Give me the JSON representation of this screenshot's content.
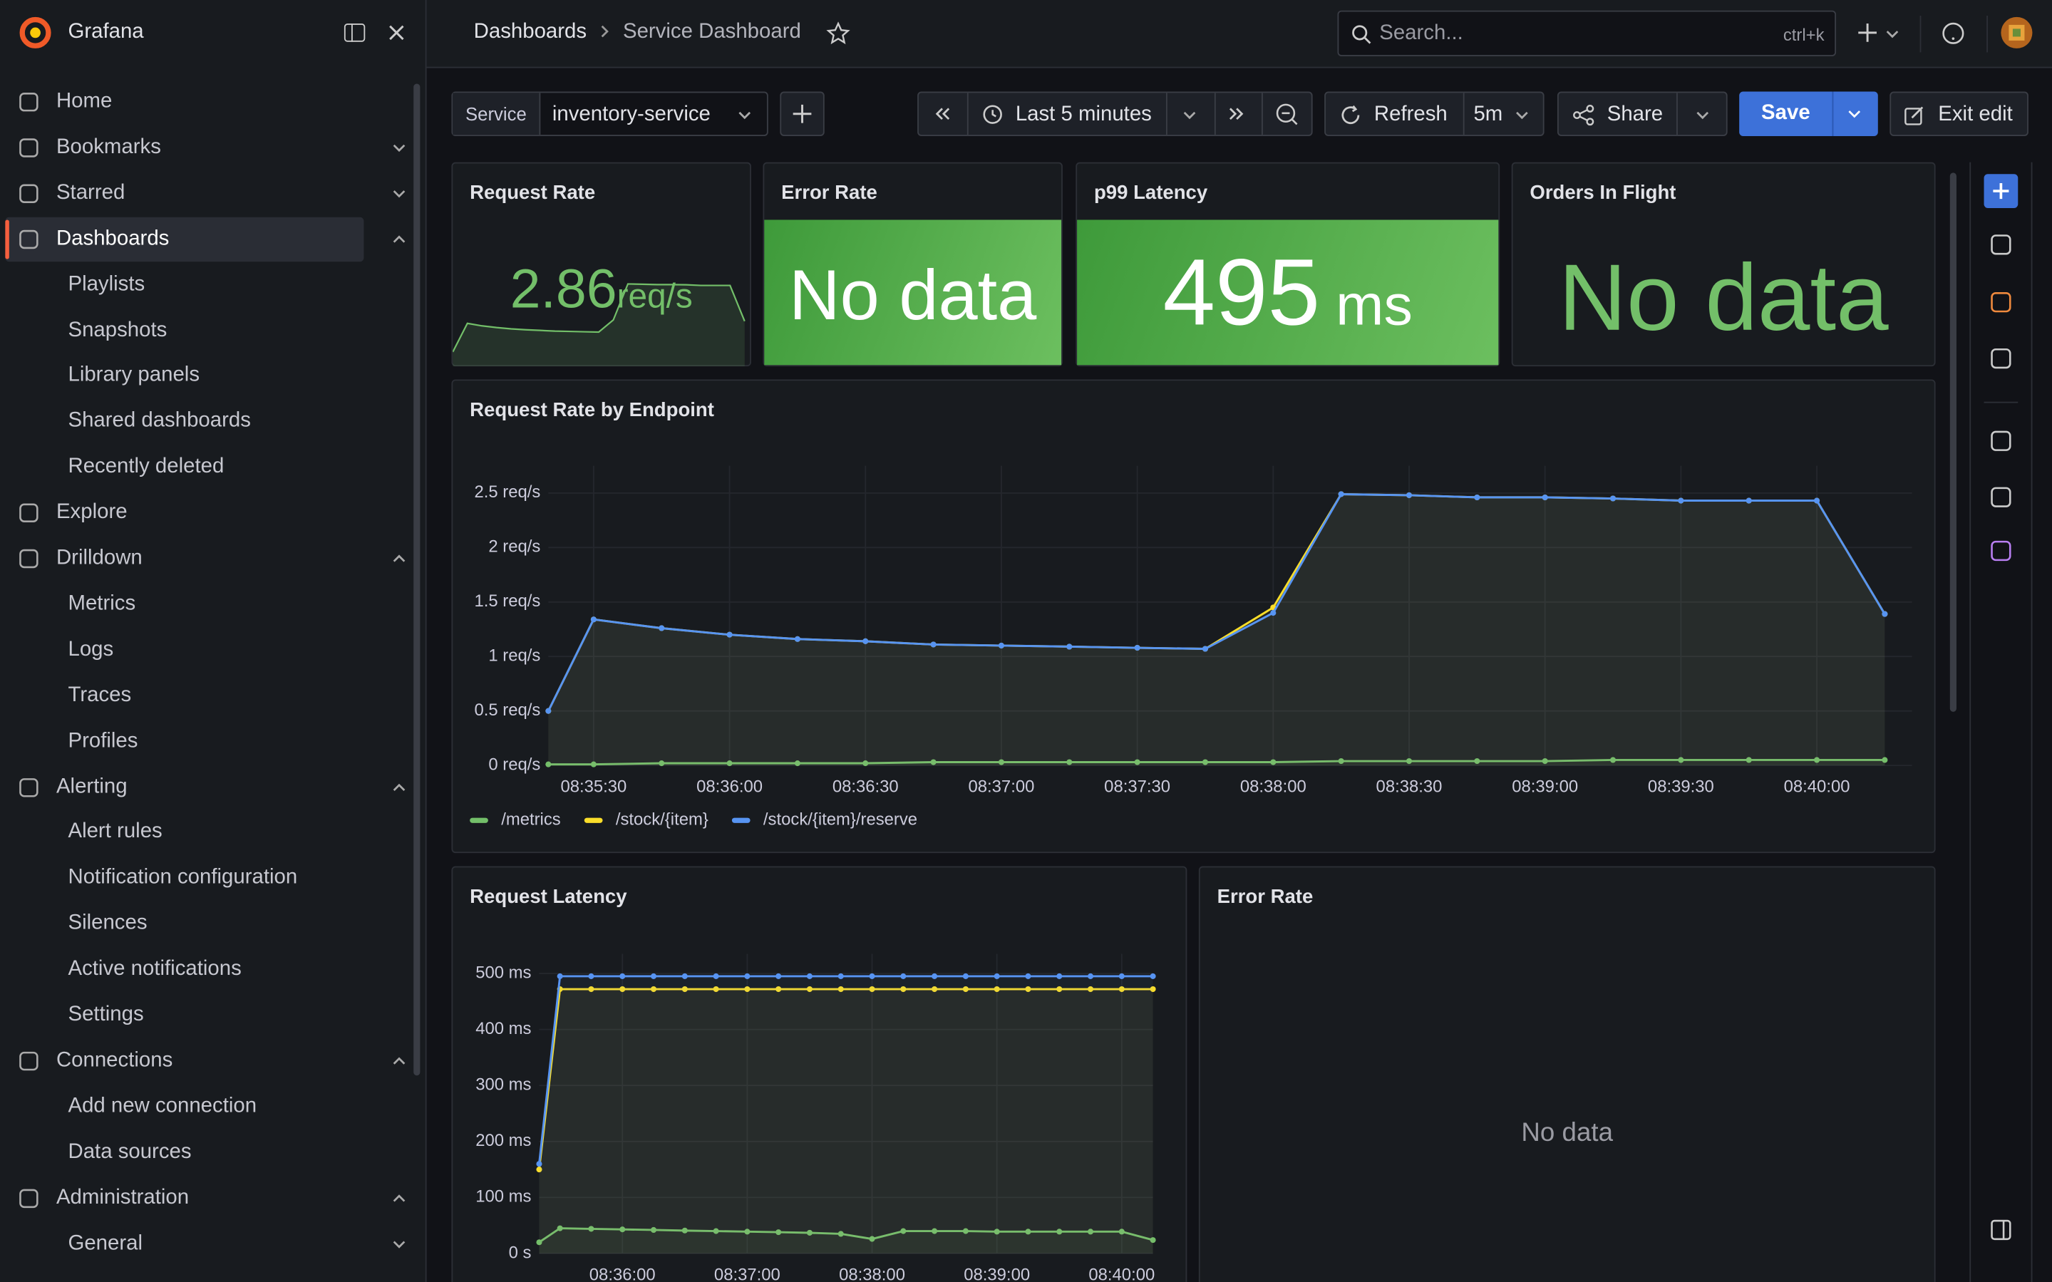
{
  "sidebar": {
    "brand": "Grafana",
    "items": [
      {
        "label": "Home"
      },
      {
        "label": "Bookmarks",
        "expanded": false
      },
      {
        "label": "Starred",
        "expanded": false
      },
      {
        "label": "Dashboards",
        "expanded": true,
        "active": true,
        "children": [
          {
            "label": "Playlists"
          },
          {
            "label": "Snapshots"
          },
          {
            "label": "Library panels"
          },
          {
            "label": "Shared dashboards"
          },
          {
            "label": "Recently deleted"
          }
        ]
      },
      {
        "label": "Explore"
      },
      {
        "label": "Drilldown",
        "expanded": true,
        "children": [
          {
            "label": "Metrics"
          },
          {
            "label": "Logs"
          },
          {
            "label": "Traces"
          },
          {
            "label": "Profiles"
          }
        ]
      },
      {
        "label": "Alerting",
        "expanded": true,
        "children": [
          {
            "label": "Alert rules"
          },
          {
            "label": "Notification configuration"
          },
          {
            "label": "Silences"
          },
          {
            "label": "Active notifications"
          },
          {
            "label": "Settings"
          }
        ]
      },
      {
        "label": "Connections",
        "expanded": true,
        "children": [
          {
            "label": "Add new connection"
          },
          {
            "label": "Data sources"
          }
        ]
      },
      {
        "label": "Administration",
        "expanded": true,
        "children": [
          {
            "label": "General",
            "expanded": false
          }
        ]
      }
    ]
  },
  "topbar": {
    "breadcrumbs": [
      "Dashboards",
      "Service Dashboard"
    ],
    "search": {
      "placeholder": "Search...",
      "shortcut": "ctrl+k"
    }
  },
  "toolbar": {
    "variable": {
      "label": "Service",
      "value": "inventory-service"
    },
    "time_range": "Last 5 minutes",
    "refresh": "Refresh",
    "interval": "5m",
    "share": "Share",
    "save": "Save",
    "exit": "Exit edit"
  },
  "stats": [
    {
      "title": "Request Rate",
      "value": 2.86,
      "unit": "req/s",
      "sparkline": [
        1.0,
        2.7,
        2.55,
        2.45,
        2.37,
        2.32,
        2.28,
        2.24,
        2.22,
        2.2,
        2.18,
        2.9,
        5.04,
        5.02,
        5.0,
        5.0,
        4.99,
        4.95,
        4.95,
        4.95,
        2.83
      ]
    },
    {
      "title": "Error Rate",
      "text": "No data"
    },
    {
      "title": "p99 Latency",
      "value": 495,
      "unit": "ms"
    },
    {
      "title": "Orders In Flight",
      "text": "No data"
    }
  ],
  "chart_data": [
    {
      "type": "line",
      "title": "Request Rate by Endpoint",
      "x": [
        "08:35:20",
        "08:35:30",
        "08:35:45",
        "08:36:00",
        "08:36:15",
        "08:36:30",
        "08:36:45",
        "08:37:00",
        "08:37:15",
        "08:37:30",
        "08:37:45",
        "08:38:00",
        "08:38:15",
        "08:38:30",
        "08:38:45",
        "08:39:00",
        "08:39:15",
        "08:39:30",
        "08:39:45",
        "08:40:00",
        "08:40:15"
      ],
      "xlim": [
        "08:35:20",
        "08:40:21"
      ],
      "xticks": [
        "08:35:30",
        "08:36:00",
        "08:36:30",
        "08:37:00",
        "08:37:30",
        "08:38:00",
        "08:38:30",
        "08:39:00",
        "08:39:30",
        "08:40:00"
      ],
      "ylim": [
        0,
        2.75
      ],
      "yticks": [
        {
          "value": 0,
          "label": "0 req/s"
        },
        {
          "value": 0.5,
          "label": "0.5 req/s"
        },
        {
          "value": 1,
          "label": "1 req/s"
        },
        {
          "value": 1.5,
          "label": "1.5 req/s"
        },
        {
          "value": 2,
          "label": "2 req/s"
        },
        {
          "value": 2.5,
          "label": "2.5 req/s"
        }
      ],
      "grid": true,
      "legend": "bottom-left",
      "series": [
        {
          "name": "/metrics",
          "color": "#73bf69",
          "values": [
            0.01,
            0.01,
            0.02,
            0.02,
            0.02,
            0.02,
            0.03,
            0.03,
            0.03,
            0.03,
            0.03,
            0.03,
            0.04,
            0.04,
            0.04,
            0.04,
            0.05,
            0.05,
            0.05,
            0.05,
            0.05
          ]
        },
        {
          "name": "/stock/{item}",
          "color": "#fade2a",
          "values": [
            0.5,
            1.34,
            1.26,
            1.2,
            1.16,
            1.14,
            1.11,
            1.1,
            1.09,
            1.08,
            1.07,
            1.45,
            2.49,
            2.48,
            2.46,
            2.46,
            2.45,
            2.43,
            2.43,
            2.43,
            1.39
          ]
        },
        {
          "name": "/stock/{item}/reserve",
          "color": "#5794f2",
          "values": [
            0.5,
            1.34,
            1.26,
            1.2,
            1.16,
            1.14,
            1.11,
            1.1,
            1.09,
            1.08,
            1.07,
            1.4,
            2.49,
            2.48,
            2.46,
            2.46,
            2.45,
            2.43,
            2.43,
            2.43,
            1.39
          ]
        }
      ]
    },
    {
      "type": "line",
      "title": "Request Latency",
      "x": [
        "08:35:20",
        "08:35:30",
        "08:35:45",
        "08:36:00",
        "08:36:15",
        "08:36:30",
        "08:36:45",
        "08:37:00",
        "08:37:15",
        "08:37:30",
        "08:37:45",
        "08:38:00",
        "08:38:15",
        "08:38:30",
        "08:38:45",
        "08:39:00",
        "08:39:15",
        "08:39:30",
        "08:39:45",
        "08:40:00",
        "08:40:15"
      ],
      "xlim": [
        "08:35:20",
        "08:40:15"
      ],
      "xticks": [
        "08:36:00",
        "08:37:00",
        "08:38:00",
        "08:39:00",
        "08:40:00"
      ],
      "ylim": [
        0,
        535
      ],
      "yticks": [
        {
          "value": 0,
          "label": "0 s"
        },
        {
          "value": 100,
          "label": "100 ms"
        },
        {
          "value": 200,
          "label": "200 ms"
        },
        {
          "value": 300,
          "label": "300 ms"
        },
        {
          "value": 400,
          "label": "400 ms"
        },
        {
          "value": 500,
          "label": "500 ms"
        }
      ],
      "grid": true,
      "series": [
        {
          "color": "#73bf69",
          "values": [
            20,
            45,
            44,
            43,
            42,
            41,
            40,
            39,
            38,
            37,
            35,
            26,
            40,
            40,
            40,
            39,
            39,
            39,
            39,
            39,
            24
          ]
        },
        {
          "color": "#fade2a",
          "values": [
            150,
            472,
            472,
            472,
            472,
            472,
            472,
            472,
            472,
            472,
            472,
            472,
            472,
            472,
            472,
            472,
            472,
            472,
            472,
            472,
            472
          ]
        },
        {
          "color": "#5794f2",
          "values": [
            160,
            495,
            495,
            495,
            495,
            495,
            495,
            495,
            495,
            495,
            495,
            495,
            495,
            495,
            495,
            495,
            495,
            495,
            495,
            495,
            495
          ]
        }
      ]
    }
  ],
  "error_panel": {
    "title": "Error Rate",
    "text": "No data"
  }
}
